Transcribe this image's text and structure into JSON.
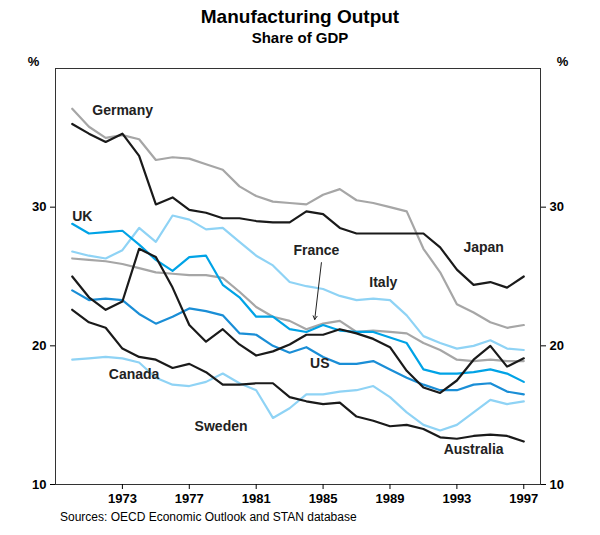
{
  "chart_data": {
    "type": "line",
    "title": "Manufacturing Output",
    "subtitle": "Share of GDP",
    "ylabel": "%",
    "source": "Sources: OECD Economic Outlook and STAN database",
    "x": [
      1970,
      1971,
      1972,
      1973,
      1974,
      1975,
      1976,
      1977,
      1978,
      1979,
      1980,
      1981,
      1982,
      1983,
      1984,
      1985,
      1986,
      1987,
      1988,
      1989,
      1990,
      1991,
      1992,
      1993,
      1994,
      1995,
      1996,
      1997
    ],
    "xlim": [
      1969,
      1998
    ],
    "xticks": [
      1973,
      1977,
      1981,
      1985,
      1989,
      1993,
      1997
    ],
    "ylim": [
      10,
      40
    ],
    "yticks": [
      10,
      20,
      30
    ],
    "grid": false,
    "series": [
      {
        "name": "Germany",
        "color": "#a6a6a6",
        "values": [
          37.1,
          35.8,
          35.0,
          35.2,
          34.9,
          33.4,
          33.6,
          33.5,
          33.1,
          32.7,
          31.5,
          30.8,
          30.4,
          30.3,
          30.2,
          30.9,
          31.3,
          30.5,
          30.3,
          30.0,
          29.7,
          27.0,
          25.3,
          23.0,
          22.4,
          21.7,
          21.3,
          21.5
        ]
      },
      {
        "name": "France",
        "color": "#a6a6a6",
        "values": [
          26.3,
          26.2,
          26.1,
          25.9,
          25.6,
          25.3,
          25.2,
          25.1,
          25.1,
          24.9,
          23.9,
          22.8,
          22.1,
          21.8,
          21.2,
          21.6,
          21.8,
          21.0,
          21.1,
          21.0,
          20.9,
          20.2,
          19.7,
          19.0,
          18.9,
          19.0,
          18.9,
          18.9
        ]
      },
      {
        "name": "Italy",
        "color": "#8fd3f5",
        "values": [
          26.8,
          26.5,
          26.3,
          26.9,
          28.5,
          27.5,
          29.4,
          29.1,
          28.4,
          28.5,
          27.5,
          26.5,
          25.8,
          24.6,
          24.3,
          24.1,
          23.6,
          23.3,
          23.4,
          23.3,
          22.2,
          20.7,
          20.2,
          19.8,
          20.0,
          20.4,
          19.8,
          19.7
        ]
      },
      {
        "name": "Canada",
        "color": "#8fd3f5",
        "values": [
          19.0,
          19.1,
          19.2,
          19.1,
          18.8,
          17.7,
          17.2,
          17.1,
          17.4,
          18.0,
          17.3,
          16.8,
          14.8,
          15.5,
          16.5,
          16.5,
          16.7,
          16.8,
          17.1,
          16.3,
          15.2,
          14.3,
          13.9,
          14.3,
          15.2,
          16.1,
          15.8,
          16.0
        ]
      },
      {
        "name": "UK",
        "color": "#00a3e6",
        "values": [
          28.8,
          28.1,
          28.2,
          28.3,
          27.3,
          26.2,
          25.4,
          26.4,
          26.5,
          24.4,
          23.5,
          22.1,
          22.1,
          21.2,
          21.0,
          21.5,
          21.1,
          21.0,
          21.0,
          20.6,
          20.2,
          18.3,
          18.0,
          18.0,
          18.1,
          18.3,
          18.0,
          17.4
        ]
      },
      {
        "name": "US",
        "color": "#1a8ed6",
        "values": [
          24.0,
          23.3,
          23.4,
          23.3,
          22.3,
          21.6,
          22.1,
          22.7,
          22.5,
          22.2,
          20.9,
          20.8,
          20.0,
          19.5,
          19.9,
          19.2,
          18.7,
          18.7,
          18.9,
          18.3,
          17.7,
          17.2,
          16.8,
          16.8,
          17.2,
          17.3,
          16.7,
          16.5
        ]
      },
      {
        "name": "Japan",
        "color": "#1a1a1a",
        "values": [
          36.0,
          35.3,
          34.7,
          35.3,
          33.7,
          30.2,
          30.7,
          29.8,
          29.6,
          29.2,
          29.2,
          29.0,
          28.9,
          28.9,
          29.7,
          29.5,
          28.5,
          28.1,
          28.1,
          28.1,
          28.1,
          28.1,
          27.1,
          25.5,
          24.4,
          24.6,
          24.2,
          25.0
        ]
      },
      {
        "name": "Sweden",
        "color": "#1a1a1a",
        "values": [
          25.0,
          23.5,
          22.6,
          23.2,
          27.0,
          26.4,
          24.2,
          21.5,
          20.3,
          21.2,
          20.1,
          19.3,
          19.6,
          20.1,
          20.8,
          20.8,
          21.2,
          20.9,
          20.5,
          19.9,
          18.2,
          17.0,
          16.6,
          17.5,
          19.0,
          20.0,
          18.5,
          19.1
        ]
      },
      {
        "name": "Australia",
        "color": "#1a1a1a",
        "values": [
          22.6,
          21.7,
          21.3,
          19.8,
          19.2,
          19.0,
          18.4,
          18.7,
          18.1,
          17.2,
          17.2,
          17.3,
          17.3,
          16.3,
          16.0,
          15.8,
          15.9,
          14.9,
          14.6,
          14.2,
          14.3,
          14.0,
          13.4,
          13.3,
          13.5,
          13.6,
          13.5,
          13.1
        ]
      }
    ]
  }
}
